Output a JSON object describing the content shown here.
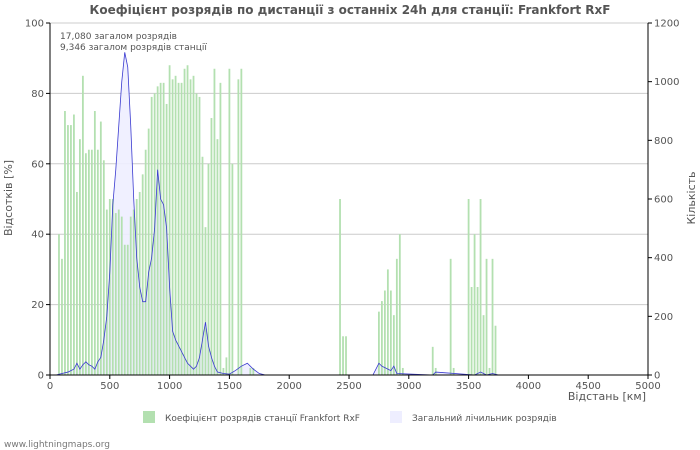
{
  "chart_data": {
    "type": "bar",
    "title": "Коефіцієнт розрядів по дистанції з останніх 24h для станції: Frankfort RxF",
    "xlabel": "Відстань   [км]",
    "ylabel_left": "Відсотків   [%]",
    "ylabel_right": "Кількість",
    "xlim": [
      0,
      5000
    ],
    "ylim_left": [
      0,
      100
    ],
    "ylim_right": [
      0,
      1200
    ],
    "x_ticks": [
      "0",
      "500",
      "1000",
      "1500",
      "2000",
      "2500",
      "3000",
      "3500",
      "4000",
      "4500",
      "5000"
    ],
    "y_ticks_left": [
      "0",
      "20",
      "40",
      "60",
      "80",
      "100"
    ],
    "y_ticks_right": [
      "0",
      "200",
      "400",
      "600",
      "800",
      "1000",
      "1200"
    ],
    "annotation_lines": [
      "17,080 загалом розрядів",
      "9,346 загалом розрядів станції"
    ],
    "bin_width_km": 25,
    "series": [
      {
        "name": "Коефіцієнт розрядів станції Frankfort RxF",
        "axis": "left",
        "color": "#b3e0b0",
        "x": [
          75,
          100,
          125,
          150,
          175,
          200,
          225,
          250,
          275,
          300,
          325,
          350,
          375,
          400,
          425,
          450,
          475,
          500,
          525,
          550,
          575,
          600,
          625,
          650,
          675,
          700,
          725,
          750,
          775,
          800,
          825,
          850,
          875,
          900,
          925,
          950,
          975,
          1000,
          1025,
          1050,
          1075,
          1100,
          1125,
          1150,
          1175,
          1200,
          1225,
          1250,
          1275,
          1300,
          1325,
          1350,
          1375,
          1400,
          1425,
          1450,
          1475,
          1500,
          1525,
          1575,
          1600,
          1675,
          1700,
          2425,
          2450,
          2475,
          2750,
          2775,
          2800,
          2825,
          2850,
          2875,
          2900,
          2925,
          2950,
          3200,
          3225,
          3350,
          3375,
          3500,
          3525,
          3550,
          3575,
          3600,
          3625,
          3650,
          3675,
          3700,
          3725
        ],
        "values": [
          40,
          33,
          75,
          71,
          71,
          74,
          52,
          67,
          85,
          63,
          64,
          64,
          75,
          64,
          72,
          61,
          47,
          50,
          50,
          46,
          47,
          45,
          37,
          37,
          45,
          47,
          50,
          52,
          57,
          64,
          70,
          79,
          80,
          82,
          83,
          83,
          77,
          88,
          84,
          85,
          83,
          83,
          87,
          88,
          84,
          85,
          80,
          79,
          62,
          42,
          60,
          73,
          87,
          67,
          83,
          2,
          5,
          87,
          60,
          84,
          87,
          2,
          2,
          50,
          11,
          11,
          18,
          21,
          24,
          30,
          24,
          17,
          33,
          40,
          2,
          8,
          2,
          33,
          2,
          50,
          25,
          40,
          25,
          50,
          17,
          33,
          2,
          33,
          14
        ]
      },
      {
        "name": "Загальний лічильник розрядів",
        "axis": "right",
        "color": "#d8d8f8",
        "line_color": "#3a3ad0",
        "x": [
          50,
          100,
          150,
          200,
          225,
          250,
          275,
          300,
          325,
          350,
          375,
          400,
          425,
          450,
          475,
          500,
          525,
          550,
          575,
          600,
          625,
          650,
          675,
          700,
          725,
          750,
          775,
          800,
          825,
          850,
          875,
          900,
          925,
          950,
          975,
          1000,
          1025,
          1050,
          1075,
          1100,
          1125,
          1150,
          1175,
          1200,
          1225,
          1250,
          1275,
          1300,
          1325,
          1350,
          1375,
          1400,
          1450,
          1500,
          1550,
          1600,
          1650,
          1700,
          1750,
          1800,
          2700,
          2750,
          2775,
          2800,
          2825,
          2850,
          2875,
          2900,
          3200,
          3225,
          3550,
          3600,
          3650,
          3700,
          3750
        ],
        "values": [
          0,
          5,
          10,
          20,
          40,
          20,
          35,
          45,
          35,
          30,
          20,
          45,
          60,
          120,
          200,
          350,
          580,
          700,
          850,
          1000,
          1100,
          1050,
          850,
          600,
          400,
          300,
          250,
          250,
          350,
          400,
          500,
          700,
          600,
          580,
          500,
          300,
          150,
          120,
          100,
          80,
          60,
          40,
          30,
          20,
          30,
          60,
          120,
          180,
          100,
          60,
          30,
          10,
          5,
          3,
          15,
          30,
          40,
          20,
          5,
          0,
          0,
          40,
          30,
          25,
          20,
          15,
          30,
          5,
          0,
          10,
          0,
          10,
          0,
          5,
          0
        ]
      }
    ],
    "legend": [
      "Коефіцієнт розрядів станції Frankfort RxF",
      "Загальний лічильник розрядів"
    ]
  },
  "footer": "www.lightningmaps.org"
}
